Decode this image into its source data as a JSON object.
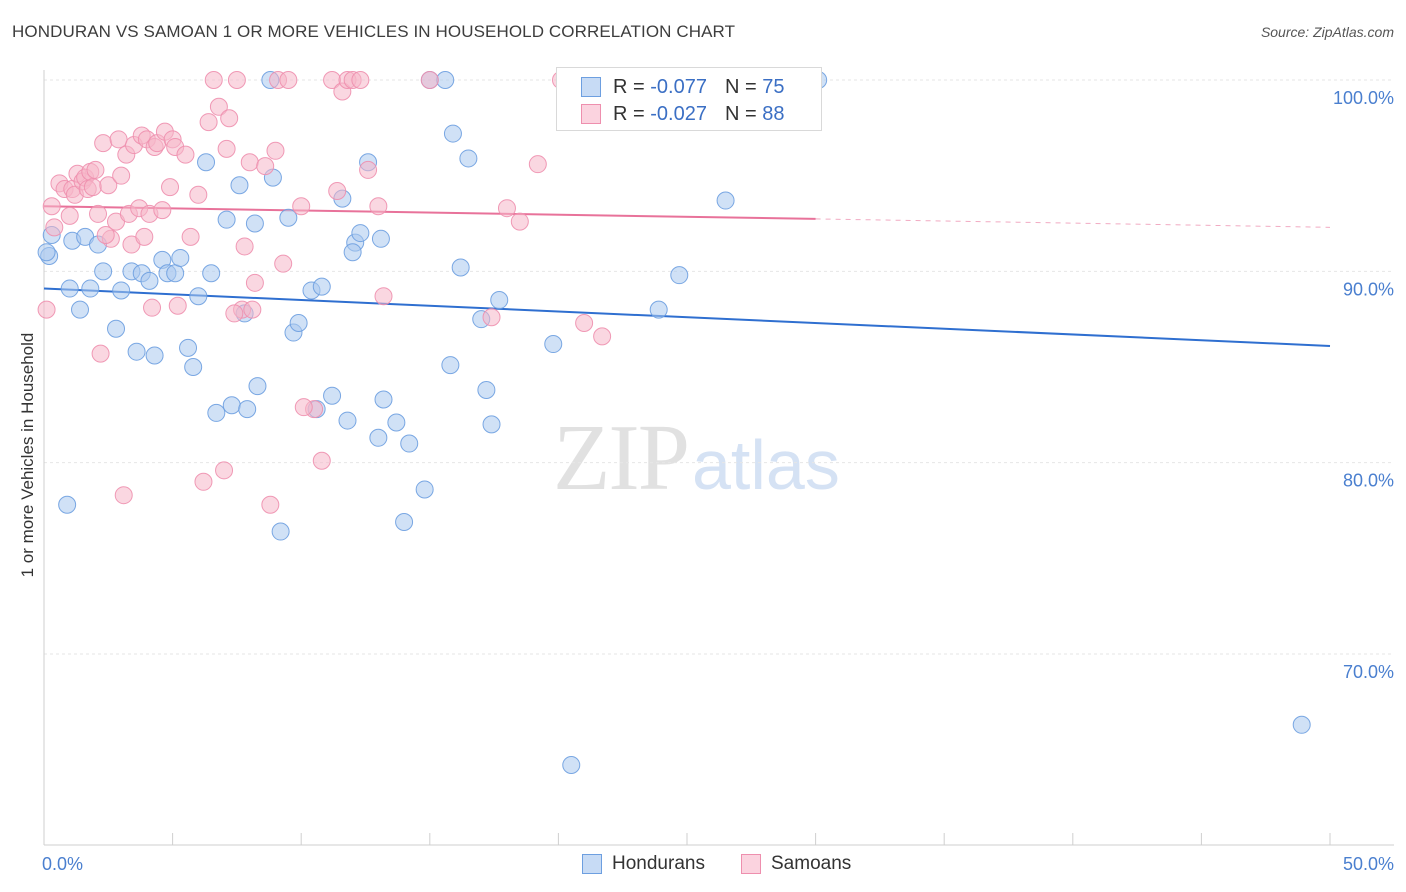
{
  "header": {
    "title": "HONDURAN VS SAMOAN 1 OR MORE VEHICLES IN HOUSEHOLD CORRELATION CHART",
    "source": "Source: ZipAtlas.com"
  },
  "watermark": {
    "zip": "ZIP",
    "atlas": "atlas"
  },
  "legend": {
    "rows": [
      {
        "r_label": "R =",
        "r_value": "-0.077",
        "n_label": "N =",
        "n_value": "75",
        "color": "#aac8ee"
      },
      {
        "r_label": "R =",
        "r_value": "-0.027",
        "n_label": "N =",
        "n_value": "88",
        "color": "#f6b6c9"
      }
    ]
  },
  "bottom_legend": {
    "items": [
      {
        "label": "Hondurans",
        "color": "#aac8ee"
      },
      {
        "label": "Samoans",
        "color": "#f6b6c9"
      }
    ]
  },
  "chart_data": {
    "type": "scatter",
    "title": "HONDURAN VS SAMOAN 1 OR MORE VEHICLES IN HOUSEHOLD CORRELATION CHART",
    "ylabel": "1 or more Vehicles in Household",
    "xlabel": "",
    "xlim": [
      0,
      50
    ],
    "ylim": [
      62,
      100.5
    ],
    "x_tick_labels": [
      "0.0%",
      "50.0%"
    ],
    "y_ticks": [
      100,
      90,
      80,
      70
    ],
    "y_tick_labels": [
      "100.0%",
      "90.0%",
      "80.0%",
      "70.0%"
    ],
    "grid": true,
    "legend_position": "top-center",
    "series": [
      {
        "name": "Hondurans",
        "color": "#6d9fe0",
        "fill": "#aac8ee",
        "trend": {
          "x": [
            0,
            50
          ],
          "y": [
            89.1,
            86.1
          ],
          "solid_to": 50
        },
        "points": [
          [
            0.2,
            90.8
          ],
          [
            0.3,
            91.9
          ],
          [
            0.9,
            77.8
          ],
          [
            1.0,
            89.1
          ],
          [
            1.1,
            91.6
          ],
          [
            1.4,
            88.0
          ],
          [
            1.6,
            91.8
          ],
          [
            1.8,
            89.1
          ],
          [
            2.1,
            91.4
          ],
          [
            2.3,
            90.0
          ],
          [
            2.8,
            87.0
          ],
          [
            3.0,
            89.0
          ],
          [
            3.4,
            90.0
          ],
          [
            3.6,
            85.8
          ],
          [
            3.8,
            89.9
          ],
          [
            4.1,
            89.5
          ],
          [
            4.3,
            85.6
          ],
          [
            4.6,
            90.6
          ],
          [
            4.8,
            89.9
          ],
          [
            5.1,
            89.9
          ],
          [
            5.3,
            90.7
          ],
          [
            5.6,
            86.0
          ],
          [
            5.8,
            85.0
          ],
          [
            6.0,
            88.7
          ],
          [
            6.3,
            95.7
          ],
          [
            6.5,
            89.9
          ],
          [
            6.7,
            82.6
          ],
          [
            7.1,
            92.7
          ],
          [
            7.3,
            83.0
          ],
          [
            7.6,
            94.5
          ],
          [
            7.8,
            87.8
          ],
          [
            7.9,
            82.8
          ],
          [
            8.2,
            92.5
          ],
          [
            8.3,
            84.0
          ],
          [
            8.8,
            100.0
          ],
          [
            8.9,
            94.9
          ],
          [
            9.2,
            76.4
          ],
          [
            9.5,
            92.8
          ],
          [
            9.7,
            86.8
          ],
          [
            9.9,
            87.3
          ],
          [
            10.4,
            89.0
          ],
          [
            10.6,
            82.8
          ],
          [
            10.8,
            89.2
          ],
          [
            11.2,
            83.5
          ],
          [
            11.6,
            93.8
          ],
          [
            11.8,
            82.2
          ],
          [
            12.1,
            91.5
          ],
          [
            12.3,
            92.0
          ],
          [
            12.6,
            95.7
          ],
          [
            13.0,
            81.3
          ],
          [
            13.1,
            91.7
          ],
          [
            13.2,
            83.3
          ],
          [
            13.7,
            82.1
          ],
          [
            14.0,
            76.9
          ],
          [
            14.2,
            81.0
          ],
          [
            14.8,
            78.6
          ],
          [
            15.0,
            100.0
          ],
          [
            15.6,
            100.0
          ],
          [
            15.8,
            85.1
          ],
          [
            15.9,
            97.2
          ],
          [
            16.2,
            90.2
          ],
          [
            16.5,
            95.9
          ],
          [
            17.2,
            83.8
          ],
          [
            17.4,
            82.0
          ],
          [
            17.7,
            88.5
          ],
          [
            19.8,
            86.2
          ],
          [
            20.5,
            64.2
          ],
          [
            23.9,
            88.0
          ],
          [
            24.7,
            89.8
          ],
          [
            26.5,
            93.7
          ],
          [
            30.1,
            100.0
          ],
          [
            48.9,
            66.3
          ],
          [
            0.1,
            91.0
          ],
          [
            12.0,
            91.0
          ],
          [
            17.0,
            87.5
          ]
        ]
      },
      {
        "name": "Samoans",
        "color": "#ee8fae",
        "fill": "#f6b6c9",
        "trend": {
          "x": [
            0,
            50
          ],
          "y": [
            93.4,
            92.3
          ],
          "solid_to": 30
        },
        "points": [
          [
            0.1,
            88.0
          ],
          [
            0.3,
            93.4
          ],
          [
            0.4,
            92.3
          ],
          [
            0.6,
            94.6
          ],
          [
            0.8,
            94.3
          ],
          [
            1.0,
            92.9
          ],
          [
            1.1,
            94.3
          ],
          [
            1.2,
            94.0
          ],
          [
            1.3,
            95.1
          ],
          [
            1.5,
            94.7
          ],
          [
            1.6,
            94.9
          ],
          [
            1.7,
            94.3
          ],
          [
            1.8,
            95.2
          ],
          [
            1.9,
            94.4
          ],
          [
            2.0,
            95.3
          ],
          [
            2.1,
            93.0
          ],
          [
            2.2,
            85.7
          ],
          [
            2.3,
            96.7
          ],
          [
            2.5,
            94.5
          ],
          [
            2.6,
            91.7
          ],
          [
            2.8,
            92.6
          ],
          [
            2.9,
            96.9
          ],
          [
            3.0,
            95.0
          ],
          [
            3.1,
            78.3
          ],
          [
            3.2,
            96.1
          ],
          [
            3.3,
            93.0
          ],
          [
            3.4,
            91.4
          ],
          [
            3.5,
            96.6
          ],
          [
            3.7,
            93.3
          ],
          [
            3.8,
            97.1
          ],
          [
            3.9,
            91.8
          ],
          [
            4.0,
            96.9
          ],
          [
            4.1,
            93.0
          ],
          [
            4.2,
            88.1
          ],
          [
            4.3,
            96.5
          ],
          [
            4.4,
            96.7
          ],
          [
            4.7,
            97.3
          ],
          [
            4.9,
            94.4
          ],
          [
            5.0,
            96.9
          ],
          [
            5.1,
            96.5
          ],
          [
            5.2,
            88.2
          ],
          [
            5.5,
            96.1
          ],
          [
            5.7,
            91.8
          ],
          [
            6.0,
            94.0
          ],
          [
            6.2,
            79.0
          ],
          [
            6.4,
            97.8
          ],
          [
            6.6,
            100.0
          ],
          [
            6.8,
            98.6
          ],
          [
            7.0,
            79.6
          ],
          [
            7.1,
            96.4
          ],
          [
            7.2,
            98.0
          ],
          [
            7.5,
            100.0
          ],
          [
            7.7,
            88.0
          ],
          [
            7.8,
            91.3
          ],
          [
            8.0,
            95.7
          ],
          [
            8.2,
            89.4
          ],
          [
            8.6,
            95.5
          ],
          [
            8.8,
            77.8
          ],
          [
            9.0,
            96.3
          ],
          [
            9.1,
            100.0
          ],
          [
            9.3,
            90.4
          ],
          [
            9.5,
            100.0
          ],
          [
            10.0,
            93.4
          ],
          [
            10.5,
            82.8
          ],
          [
            10.8,
            80.1
          ],
          [
            11.2,
            100.0
          ],
          [
            11.4,
            94.2
          ],
          [
            11.6,
            99.4
          ],
          [
            11.8,
            100.0
          ],
          [
            12.0,
            100.0
          ],
          [
            12.3,
            100.0
          ],
          [
            12.6,
            95.3
          ],
          [
            13.0,
            93.4
          ],
          [
            13.2,
            88.7
          ],
          [
            15.0,
            100.0
          ],
          [
            17.4,
            87.6
          ],
          [
            18.0,
            93.3
          ],
          [
            18.5,
            92.6
          ],
          [
            19.2,
            95.6
          ],
          [
            20.1,
            100.0
          ],
          [
            21.0,
            87.3
          ],
          [
            21.7,
            86.6
          ],
          [
            29.5,
            100.0
          ],
          [
            8.1,
            88.0
          ],
          [
            7.4,
            87.8
          ],
          [
            10.1,
            82.9
          ],
          [
            4.6,
            93.2
          ],
          [
            2.4,
            91.9
          ]
        ]
      }
    ]
  }
}
